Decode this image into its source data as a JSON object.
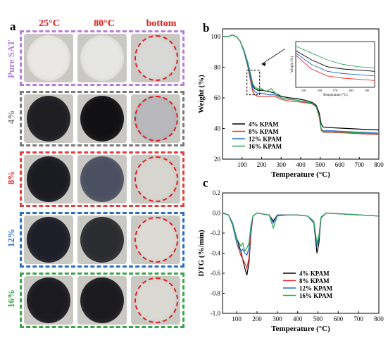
{
  "panel_a": {
    "label": "a",
    "columns": [
      "25°C",
      "80°C",
      "bottom"
    ],
    "rows": [
      {
        "label": "Pure SAT",
        "color": "#b57edc",
        "disc": [
          "#e9e8e4",
          "#e6e6e3",
          "#d8d8d6"
        ]
      },
      {
        "label": "4%",
        "color": "#7a7a7a",
        "disc": [
          "#1e1e22",
          "#111114",
          "#b9b9bd"
        ]
      },
      {
        "label": "8%",
        "color": "#e04040",
        "disc": [
          "#1b1c22",
          "#4a5060",
          "#d6d5d0"
        ]
      },
      {
        "label": "12%",
        "color": "#2c6fc2",
        "disc": [
          "#1d1e28",
          "#2b2c30",
          "#dbdad4"
        ]
      },
      {
        "label": "16%",
        "color": "#3aa54a",
        "disc": [
          "#1a1a20",
          "#1b1b1f",
          "#d9d8d3"
        ]
      }
    ]
  },
  "chart_data": [
    {
      "panel": "b",
      "type": "line",
      "xlabel": "Temperature (°C)",
      "ylabel": "Weight (%)",
      "xlim": [
        0,
        800
      ],
      "ylim": [
        20,
        105
      ],
      "xticks": [
        "100",
        "200",
        "300",
        "400",
        "500",
        "600",
        "700",
        "800"
      ],
      "yticks": [
        "20",
        "40",
        "60",
        "80",
        "100"
      ],
      "legend_position": "bottom-center",
      "series": [
        {
          "name": "4%   KPAM",
          "color": "#000000",
          "points": [
            [
              0,
              100
            ],
            [
              30,
              100
            ],
            [
              50,
              101
            ],
            [
              70,
              100
            ],
            [
              90,
              97
            ],
            [
              110,
              91
            ],
            [
              130,
              82
            ],
            [
              145,
              74
            ],
            [
              155,
              68
            ],
            [
              165,
              66
            ],
            [
              180,
              65
            ],
            [
              200,
              65
            ],
            [
              240,
              64
            ],
            [
              270,
              63
            ],
            [
              300,
              61
            ],
            [
              340,
              60
            ],
            [
              380,
              59.5
            ],
            [
              420,
              58.5
            ],
            [
              460,
              57
            ],
            [
              480,
              55
            ],
            [
              495,
              50
            ],
            [
              505,
              43
            ],
            [
              515,
              41
            ],
            [
              560,
              40.5
            ],
            [
              640,
              40
            ],
            [
              720,
              39.5
            ],
            [
              800,
              39
            ]
          ]
        },
        {
          "name": "8%   KPAM",
          "color": "#e8302a",
          "points": [
            [
              0,
              100
            ],
            [
              30,
              100
            ],
            [
              50,
              101
            ],
            [
              70,
              100
            ],
            [
              90,
              97
            ],
            [
              110,
              90
            ],
            [
              130,
              80
            ],
            [
              145,
              70
            ],
            [
              155,
              64
            ],
            [
              165,
              62
            ],
            [
              180,
              61
            ],
            [
              200,
              61
            ],
            [
              240,
              61
            ],
            [
              270,
              61
            ],
            [
              300,
              59
            ],
            [
              340,
              58
            ],
            [
              380,
              57.5
            ],
            [
              420,
              57
            ],
            [
              460,
              56
            ],
            [
              480,
              54
            ],
            [
              495,
              47
            ],
            [
              505,
              39
            ],
            [
              515,
              37.5
            ],
            [
              560,
              37.5
            ],
            [
              640,
              37
            ],
            [
              720,
              36.5
            ],
            [
              800,
              36
            ]
          ]
        },
        {
          "name": "12%   KPAM",
          "color": "#1f6fd1",
          "points": [
            [
              0,
              100
            ],
            [
              30,
              100
            ],
            [
              50,
              101
            ],
            [
              70,
              100
            ],
            [
              90,
              97
            ],
            [
              110,
              90
            ],
            [
              130,
              81
            ],
            [
              145,
              72
            ],
            [
              155,
              66
            ],
            [
              165,
              64
            ],
            [
              180,
              63
            ],
            [
              200,
              63
            ],
            [
              240,
              62
            ],
            [
              270,
              62
            ],
            [
              300,
              60
            ],
            [
              340,
              59
            ],
            [
              380,
              58.5
            ],
            [
              420,
              57.5
            ],
            [
              460,
              56.5
            ],
            [
              480,
              54
            ],
            [
              495,
              48
            ],
            [
              505,
              40
            ],
            [
              515,
              38.5
            ],
            [
              560,
              38.5
            ],
            [
              640,
              38
            ],
            [
              720,
              37.5
            ],
            [
              800,
              37
            ]
          ]
        },
        {
          "name": "16%   KPAM",
          "color": "#2fa84f",
          "points": [
            [
              0,
              100
            ],
            [
              30,
              100
            ],
            [
              50,
              101
            ],
            [
              70,
              100
            ],
            [
              90,
              97
            ],
            [
              110,
              91
            ],
            [
              130,
              83
            ],
            [
              145,
              75
            ],
            [
              155,
              69
            ],
            [
              165,
              67
            ],
            [
              180,
              66
            ],
            [
              200,
              66
            ],
            [
              220,
              64
            ],
            [
              250,
              66
            ],
            [
              270,
              63
            ],
            [
              300,
              60
            ],
            [
              340,
              59
            ],
            [
              380,
              58.5
            ],
            [
              420,
              57.5
            ],
            [
              460,
              56.5
            ],
            [
              480,
              54
            ],
            [
              495,
              48
            ],
            [
              505,
              40
            ],
            [
              515,
              38
            ],
            [
              560,
              38
            ],
            [
              640,
              37.5
            ],
            [
              720,
              37
            ],
            [
              800,
              36.5
            ]
          ]
        }
      ],
      "inset": {
        "ylabel": "Weight (%)",
        "xlabel": "Temperature (°C)",
        "xticks": [
          "150",
          "160",
          "170",
          "180",
          "190"
        ]
      }
    },
    {
      "panel": "c",
      "type": "line",
      "xlabel": "Temperature (°C)",
      "ylabel": "DTG (%/min)",
      "xlim": [
        30,
        800
      ],
      "ylim": [
        -1.0,
        0.2
      ],
      "xticks": [
        "100",
        "200",
        "300",
        "400",
        "500",
        "600",
        "700",
        "800"
      ],
      "yticks": [
        "-1.0",
        "-0.8",
        "-0.6",
        "-0.4",
        "-0.2",
        "0.0",
        "0.2"
      ],
      "legend_position": "bottom-right",
      "series": [
        {
          "name": "4%   KPAM",
          "color": "#000000",
          "points": [
            [
              30,
              0
            ],
            [
              60,
              -0.02
            ],
            [
              80,
              -0.1
            ],
            [
              100,
              -0.25
            ],
            [
              120,
              -0.38
            ],
            [
              140,
              -0.55
            ],
            [
              150,
              -0.62
            ],
            [
              160,
              -0.5
            ],
            [
              170,
              -0.2
            ],
            [
              180,
              -0.03
            ],
            [
              200,
              0
            ],
            [
              260,
              -0.02
            ],
            [
              280,
              -0.08
            ],
            [
              300,
              -0.02
            ],
            [
              350,
              -0.02
            ],
            [
              400,
              -0.02
            ],
            [
              450,
              -0.03
            ],
            [
              480,
              -0.1
            ],
            [
              495,
              -0.4
            ],
            [
              505,
              -0.3
            ],
            [
              515,
              -0.05
            ],
            [
              540,
              0
            ],
            [
              800,
              -0.03
            ]
          ]
        },
        {
          "name": "8%   KPAM",
          "color": "#e8302a",
          "points": [
            [
              30,
              0
            ],
            [
              60,
              -0.02
            ],
            [
              80,
              -0.12
            ],
            [
              100,
              -0.3
            ],
            [
              120,
              -0.42
            ],
            [
              140,
              -0.5
            ],
            [
              150,
              -0.55
            ],
            [
              160,
              -0.45
            ],
            [
              170,
              -0.18
            ],
            [
              180,
              -0.03
            ],
            [
              200,
              0
            ],
            [
              260,
              -0.02
            ],
            [
              280,
              -0.1
            ],
            [
              300,
              -0.02
            ],
            [
              350,
              -0.02
            ],
            [
              400,
              -0.02
            ],
            [
              450,
              -0.03
            ],
            [
              480,
              -0.1
            ],
            [
              495,
              -0.32
            ],
            [
              505,
              -0.25
            ],
            [
              515,
              -0.05
            ],
            [
              540,
              0
            ],
            [
              800,
              -0.03
            ]
          ]
        },
        {
          "name": "12%   KPAM",
          "color": "#1f6fd1",
          "points": [
            [
              30,
              0
            ],
            [
              60,
              -0.02
            ],
            [
              80,
              -0.12
            ],
            [
              100,
              -0.3
            ],
            [
              120,
              -0.38
            ],
            [
              130,
              -0.36
            ],
            [
              140,
              -0.4
            ],
            [
              150,
              -0.42
            ],
            [
              160,
              -0.35
            ],
            [
              170,
              -0.15
            ],
            [
              180,
              -0.03
            ],
            [
              200,
              0
            ],
            [
              260,
              -0.02
            ],
            [
              280,
              -0.1
            ],
            [
              300,
              -0.02
            ],
            [
              350,
              -0.02
            ],
            [
              400,
              -0.02
            ],
            [
              450,
              -0.03
            ],
            [
              480,
              -0.1
            ],
            [
              495,
              -0.33
            ],
            [
              505,
              -0.25
            ],
            [
              515,
              -0.05
            ],
            [
              540,
              0
            ],
            [
              800,
              -0.03
            ]
          ]
        },
        {
          "name": "16%   KPAM",
          "color": "#2fa84f",
          "points": [
            [
              30,
              0
            ],
            [
              60,
              -0.02
            ],
            [
              80,
              -0.1
            ],
            [
              100,
              -0.25
            ],
            [
              120,
              -0.33
            ],
            [
              130,
              -0.3
            ],
            [
              140,
              -0.38
            ],
            [
              150,
              -0.35
            ],
            [
              160,
              -0.3
            ],
            [
              170,
              -0.12
            ],
            [
              180,
              -0.03
            ],
            [
              200,
              0
            ],
            [
              260,
              -0.02
            ],
            [
              280,
              -0.15
            ],
            [
              300,
              -0.03
            ],
            [
              350,
              -0.02
            ],
            [
              400,
              -0.02
            ],
            [
              450,
              -0.03
            ],
            [
              480,
              -0.08
            ],
            [
              495,
              -0.3
            ],
            [
              505,
              -0.22
            ],
            [
              515,
              -0.04
            ],
            [
              540,
              0
            ],
            [
              800,
              -0.03
            ]
          ]
        }
      ]
    }
  ]
}
